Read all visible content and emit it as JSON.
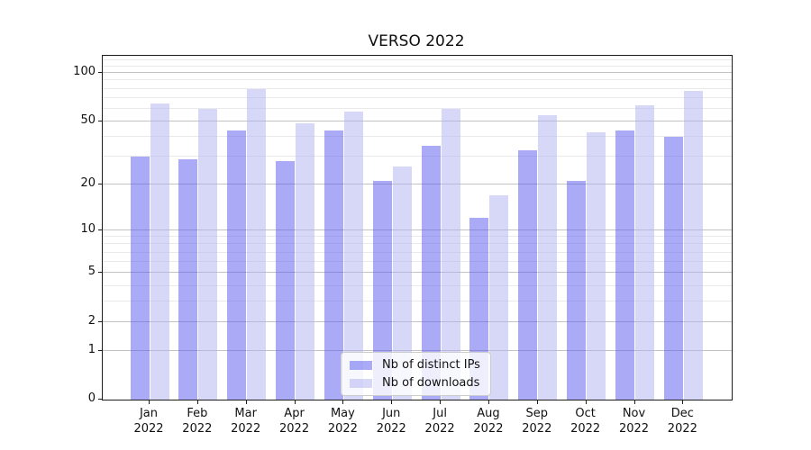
{
  "chart_data": {
    "type": "bar",
    "title": "VERSO 2022",
    "categories": [
      "Jan",
      "Feb",
      "Mar",
      "Apr",
      "May",
      "Jun",
      "Jul",
      "Aug",
      "Sep",
      "Oct",
      "Nov",
      "Dec"
    ],
    "x_tick_year": "2022",
    "series": [
      {
        "name": "Nb of distinct IPs",
        "color": "#5555ee",
        "alpha": 0.5,
        "values": [
          30,
          29,
          44,
          28,
          44,
          21,
          35,
          12,
          33,
          21,
          44,
          40
        ]
      },
      {
        "name": "Nb of downloads",
        "color": "#afaff2",
        "alpha": 0.5,
        "values": [
          65,
          60,
          80,
          49,
          58,
          26,
          60,
          17,
          55,
          43,
          63,
          78
        ]
      }
    ],
    "y_axis": {
      "scale": "log10(1+x)",
      "major_ticks": [
        0,
        1,
        2,
        5,
        10,
        20,
        50,
        100
      ],
      "minor_ticks": [
        3,
        4,
        6,
        7,
        8,
        9,
        30,
        40,
        60,
        70,
        80,
        90,
        110,
        120,
        130
      ],
      "ylim": [
        0,
        128
      ]
    },
    "grid": true,
    "legend_position": "lower center (inside plot)",
    "colors": {
      "grid_major": "#c3c3c3",
      "grid_minor": "#eaeaea",
      "axis": "#1c1c1c",
      "text": "#111111",
      "background": "#ffffff"
    }
  }
}
